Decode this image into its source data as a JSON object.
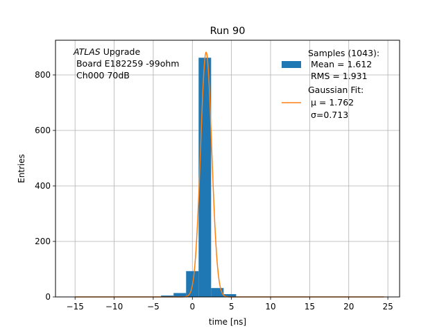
{
  "chart_data": {
    "type": "bar",
    "title": "Run 90",
    "xlabel": "time [ns]",
    "ylabel": "Entries",
    "xlim": [
      -17.5,
      26.5
    ],
    "ylim": [
      0,
      925
    ],
    "xticks": [
      -15,
      -10,
      -5,
      0,
      5,
      10,
      15,
      20,
      25
    ],
    "xtick_labels": [
      "−15",
      "−10",
      "−5",
      "0",
      "5",
      "10",
      "15",
      "20",
      "25"
    ],
    "yticks": [
      0,
      200,
      400,
      600,
      800
    ],
    "ytick_labels": [
      "0",
      "200",
      "400",
      "600",
      "800"
    ],
    "grid": true,
    "annotation": {
      "italic": "ATLAS",
      "line1_rest": " Upgrade",
      "line2": " Board E182259 -99ohm",
      "line3": " Ch000 70dB"
    },
    "series": [
      {
        "name": "Samples (1043):",
        "kind": "histogram",
        "color": "#1f77b4",
        "bin_edges": [
          -4,
          -2.4,
          -0.8,
          0.8,
          2.4,
          4.0,
          5.6
        ],
        "counts": [
          5,
          14,
          93,
          862,
          32,
          10
        ],
        "stats_lines": [
          " Mean = 1.612",
          " RMS = 1.931"
        ]
      },
      {
        "name": "Gaussian Fit:",
        "kind": "curve",
        "color": "#ff7f0e",
        "x_range": [
          -15,
          24.5
        ],
        "amplitude": 882,
        "mu": 1.762,
        "sigma": 0.713,
        "param_lines": [
          " μ = 1.762",
          " σ=0.713"
        ]
      }
    ],
    "legend_position": "top-right"
  },
  "colors": {
    "bar": "#1f77b4",
    "fit": "#ff7f0e",
    "grid": "#b0b0b0"
  }
}
